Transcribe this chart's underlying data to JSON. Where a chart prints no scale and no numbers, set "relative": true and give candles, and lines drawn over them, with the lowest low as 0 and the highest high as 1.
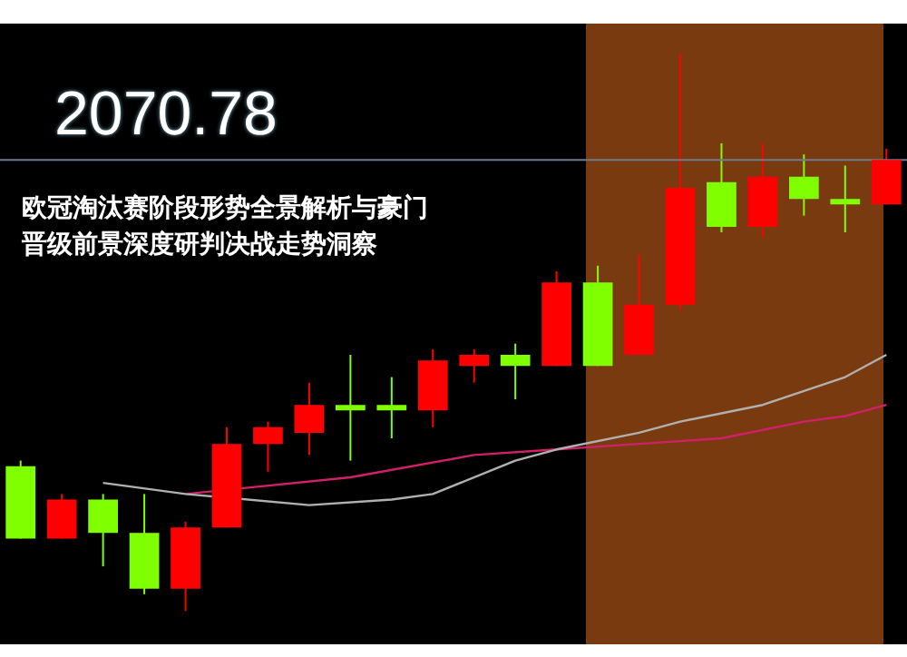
{
  "chart_data": {
    "type": "candlestick",
    "title": "欧冠淘汰赛阶段形势全景解析与豪门晋级前景深度研判决战走势洞察",
    "relative": true,
    "legend": false,
    "annotations": [
      "2070.78"
    ],
    "categories": [
      null,
      null,
      null,
      null,
      null,
      null,
      null,
      null,
      null,
      null,
      null,
      null,
      null,
      null,
      null,
      null,
      null,
      null,
      null,
      null,
      null,
      null
    ],
    "ohlc": [
      [
        0.26,
        0.27,
        0.13,
        0.13
      ],
      [
        0.13,
        0.21,
        0.13,
        0.2
      ],
      [
        0.2,
        0.21,
        0.08,
        0.14
      ],
      [
        0.14,
        0.21,
        0.03,
        0.04
      ],
      [
        0.04,
        0.16,
        0,
        0.15
      ],
      [
        0.15,
        0.33,
        0.15,
        0.3
      ],
      [
        0.3,
        0.34,
        0.25,
        0.33
      ],
      [
        0.32,
        0.41,
        0.28,
        0.37
      ],
      [
        0.37,
        0.46,
        0.27,
        0.36
      ],
      [
        0.37,
        0.42,
        0.31,
        0.36
      ],
      [
        0.36,
        0.47,
        0.33,
        0.45
      ],
      [
        0.44,
        0.47,
        0.41,
        0.46
      ],
      [
        0.46,
        0.48,
        0.38,
        0.44
      ],
      [
        0.44,
        0.61,
        0.44,
        0.59
      ],
      [
        0.59,
        0.62,
        0.44,
        0.44
      ],
      [
        0.46,
        0.64,
        0.46,
        0.55
      ],
      [
        0.55,
        1,
        0.54,
        0.76
      ],
      [
        0.77,
        0.84,
        0.68,
        0.69
      ],
      [
        0.69,
        0.84,
        0.67,
        0.78
      ],
      [
        0.78,
        0.82,
        0.71,
        0.74
      ],
      [
        0.74,
        0.8,
        0.68,
        0.73
      ],
      [
        0.73,
        0.83,
        0.73,
        0.81
      ]
    ],
    "colors": [
      "#7fff00",
      "#ff0000",
      "#7fff00",
      "#7fff00",
      "#ff0000",
      "#ff0000",
      "#ff0000",
      "#ff0000",
      "#7fff00",
      "#7fff00",
      "#ff0000",
      "#ff0000",
      "#7fff00",
      "#ff0000",
      "#7fff00",
      "#ff0000",
      "#ff0000",
      "#7fff00",
      "#ff0000",
      "#7fff00",
      "#7fff00",
      "#ff0000"
    ],
    "series": [
      {
        "type": "line",
        "color": "#b0b0b0",
        "values": [
          null,
          null,
          0.23,
          null,
          0.21,
          null,
          null,
          0.19,
          null,
          0.2,
          0.21,
          null,
          0.27,
          0.29,
          null,
          0.32,
          0.34,
          null,
          0.37,
          null,
          0.42,
          0.46
        ]
      },
      {
        "type": "line",
        "color": "#d0206a",
        "values": [
          null,
          null,
          null,
          null,
          0.21,
          null,
          null,
          null,
          0.24,
          null,
          null,
          0.28,
          null,
          0.29,
          null,
          0.3,
          null,
          0.31,
          null,
          0.34,
          0.35,
          0.37
        ]
      }
    ],
    "ref_lines": [
      {
        "axis": "y",
        "value": 0.81,
        "color": "#6b7b8c"
      }
    ]
  }
}
